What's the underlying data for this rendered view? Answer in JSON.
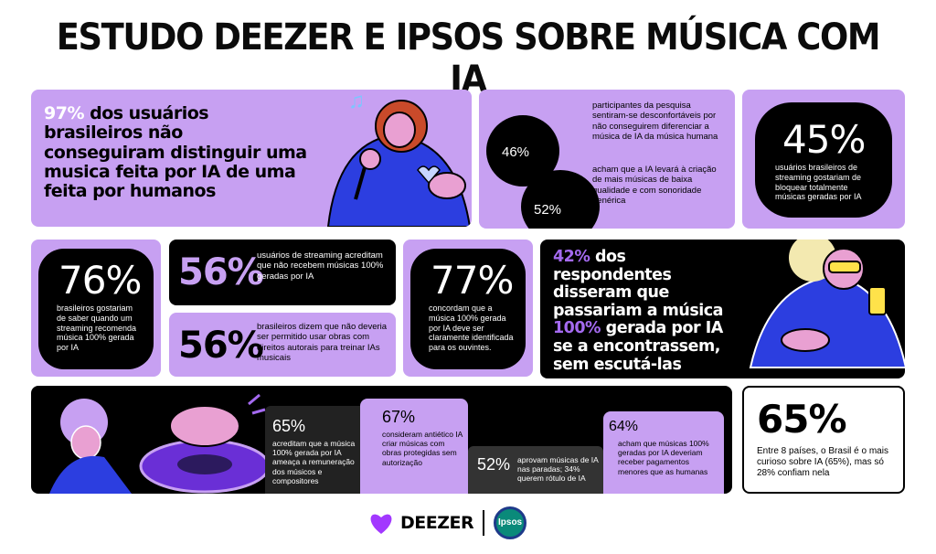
{
  "title": "ESTUDO DEEZER E IPSOS SOBRE MÚSICA COM IA",
  "colors": {
    "lavender": "#c7a0f2",
    "black": "#000000",
    "white": "#ffffff",
    "accent_purple": "#a46af0"
  },
  "stat_97": {
    "percent": "97%",
    "text": "dos usuários brasileiros não conseguiram distinguir uma musica feita por IA de uma feita por humanos"
  },
  "stat_46_52": {
    "p46": "46%",
    "t46": "participantes da pesquisa sentiram-se desconfortáveis por não conseguirem diferenciar a música de IA da música humana",
    "p52": "52%",
    "t52": "acham que a IA levará à criação de mais músicas de baixa qualidade e com sonoridade genérica"
  },
  "stat_45": {
    "percent": "45%",
    "text": "usuários brasileiros de streaming gostariam de bloquear totalmente músicas geradas por IA"
  },
  "stat_76": {
    "percent": "76%",
    "text": "brasileiros gostariam de saber quando um streaming recomenda música 100% gerada por IA"
  },
  "stat_56a": {
    "percent": "56%",
    "text": "usuários de streaming acreditam que não recebem músicas 100% geradas por IA"
  },
  "stat_56b": {
    "percent": "56%",
    "text": "brasileiros dizem que não deveria ser permitido usar obras com direitos autorais para treinar IAs musicais"
  },
  "stat_77": {
    "percent": "77%",
    "text": "concordam que a música 100% gerada por IA deve ser claramente identificada para os ouvintes."
  },
  "stat_42": {
    "percent": "42%",
    "pre": "dos respondentes disseram que passariam a música",
    "hl": "100%",
    "mid": "gerada por IA",
    "post": "se a encontrassem, sem escutá-las"
  },
  "stat_65a": {
    "percent": "65%",
    "text": "acreditam que a música 100% gerada por IA ameaça a remuneração dos músicos e compositores"
  },
  "stat_67": {
    "percent": "67%",
    "text": "consideram antiético IA criar músicas com obras protegidas sem autorização"
  },
  "stat_52b": {
    "percent": "52%",
    "text": "aprovam músicas de IA nas paradas; 34% querem rótulo de IA"
  },
  "stat_64": {
    "percent": "64%",
    "text": "acham que músicas 100% geradas por IA deveriam receber pagamentos menores que as humanas"
  },
  "stat_65b": {
    "percent": "65%",
    "text": "Entre 8 países, o Brasil é o mais curioso sobre IA (65%), mas só 28% confiam nela"
  },
  "footer": {
    "deezer": "DEEZER",
    "ipsos": "Ipsos"
  }
}
